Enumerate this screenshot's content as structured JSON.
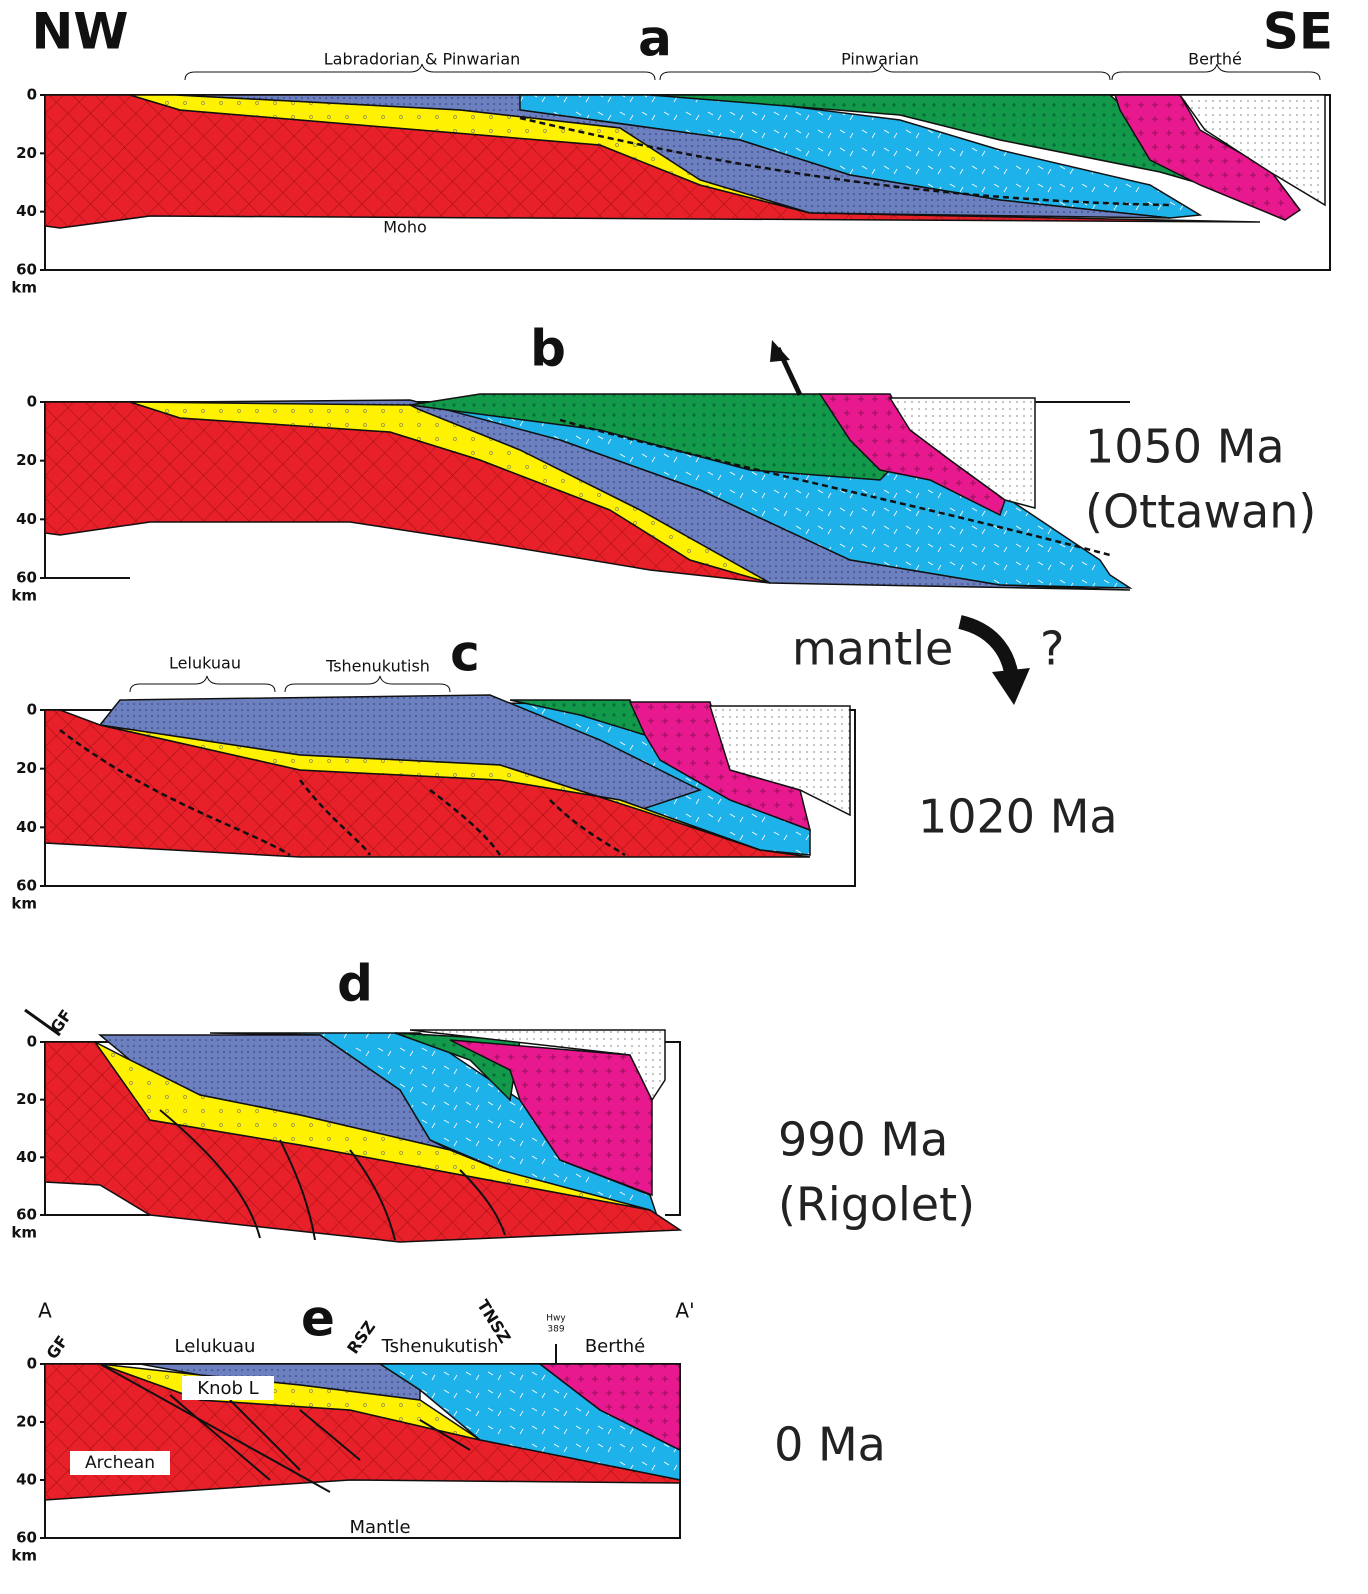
{
  "orientation": {
    "left": "NW",
    "right": "SE"
  },
  "depth_axis": {
    "ticks": [
      0,
      20,
      40,
      60
    ],
    "unit": "km"
  },
  "panels": [
    {
      "label": "a",
      "regions": [
        "Labradorian & Pinwarian",
        "Pinwarian",
        "Berthé"
      ],
      "annotations": [
        "Moho"
      ]
    },
    {
      "label": "b",
      "age": "1050 Ma",
      "event": "(Ottawan)"
    },
    {
      "label": "c",
      "regions": [
        "Lelukuau",
        "Tshenukutish"
      ],
      "age": "1020 Ma"
    },
    {
      "label": "d",
      "age": "990 Ma",
      "event": "(Rigolet)",
      "annotations": [
        "GF"
      ]
    },
    {
      "label": "e",
      "age": "0 Ma",
      "regions": [
        "Lelukuau",
        "Tshenukutish",
        "Berthé"
      ],
      "annotations": [
        "A",
        "A'",
        "GF",
        "RSZ",
        "TNSZ",
        "Hwy",
        "389",
        "Knob L",
        "Archean",
        "Mantle"
      ]
    }
  ],
  "mantle_note": {
    "text": "mantle",
    "query": "?"
  }
}
